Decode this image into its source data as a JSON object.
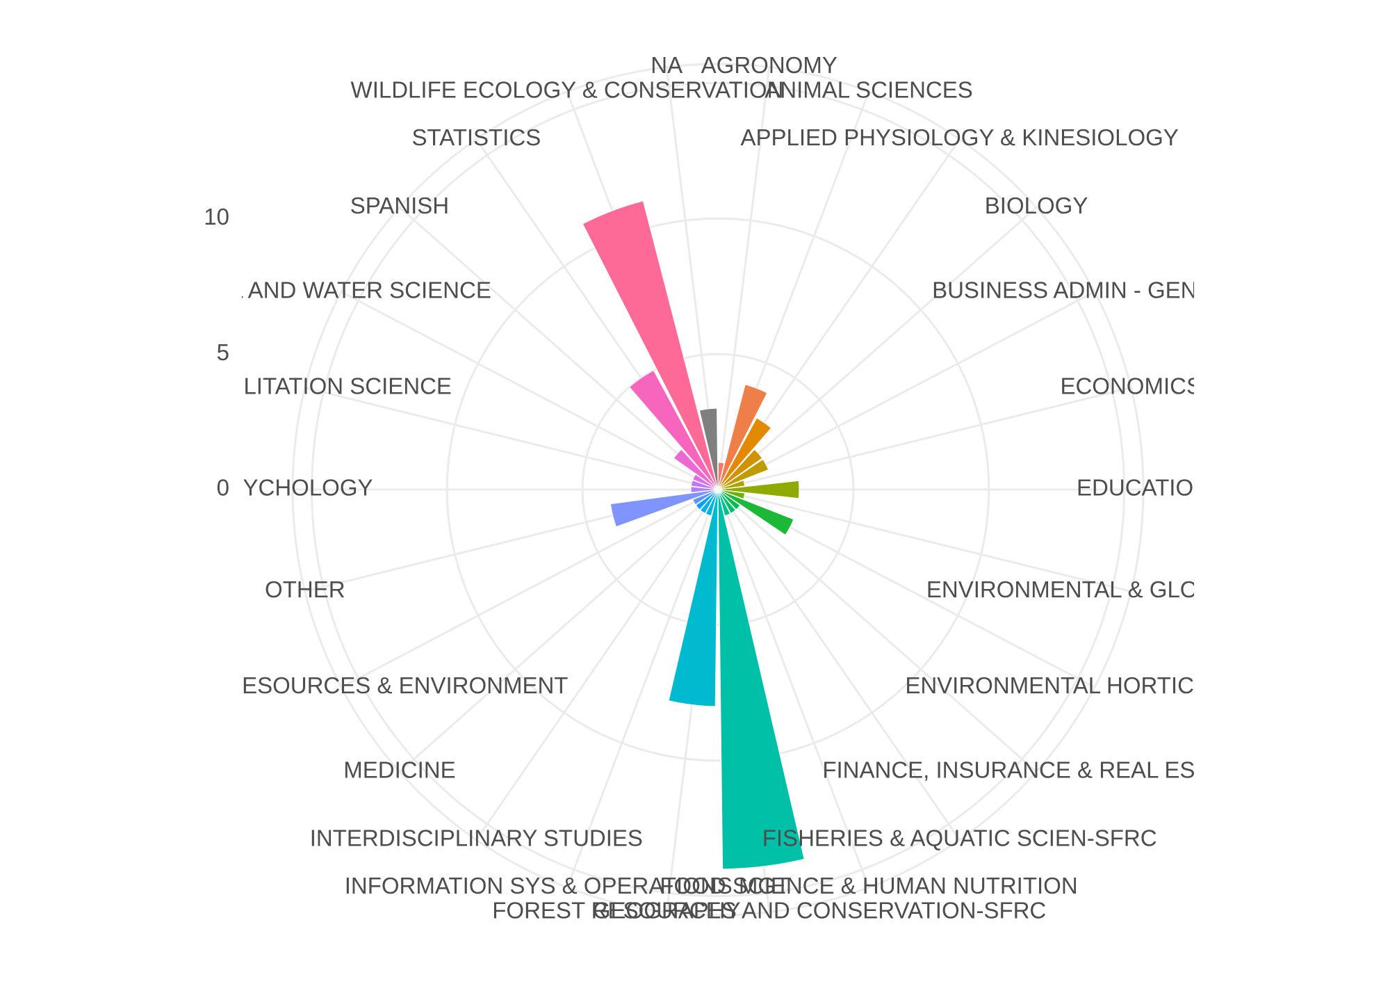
{
  "chart_data": {
    "type": "polar_bar",
    "categories": [
      "AGRONOMY",
      "ANIMAL SCIENCES",
      "APPLIED PHYSIOLOGY & KINESIOLOGY",
      "BIOLOGY",
      "BUSINESS ADMIN - GENERAL",
      "ECONOMICS",
      "EDUCATION",
      "ENVIRONMENTAL & GLOBAL HEALTH",
      "ENVIRONMENTAL HORTICULTURE",
      "FINANCE, INSURANCE & REAL ESTATE",
      "FISHERIES & AQUATIC SCIEN-SFRC",
      "FOOD SCIENCE & HUMAN NUTRITION",
      "FOREST RESOURCES AND CONSERVATION-SFRC",
      "GEOGRAPHY",
      "INFORMATION SYS & OPERATIONS MGT",
      "INTERDISCIPLINARY STUDIES",
      "MEDICINE",
      "NATURAL RESOURCES & ENVIRONMENT",
      "OTHER",
      "PSYCHOLOGY",
      "REHABILITATION SCIENCE",
      "SOIL AND WATER SCIENCE",
      "SPANISH",
      "STATISTICS",
      "WILDLIFE ECOLOGY & CONSERVATION",
      "NA"
    ],
    "values": [
      1,
      4,
      3,
      2,
      2,
      1,
      3,
      1,
      3,
      1,
      1,
      1,
      14,
      8,
      1,
      1,
      1,
      1,
      4,
      1,
      1,
      1,
      2,
      5,
      11,
      3
    ],
    "colors": [
      "#F8766D",
      "#EF7F49",
      "#E38900",
      "#D29200",
      "#C09B00",
      "#A9A400",
      "#8FAA00",
      "#6BB100",
      "#1CB837",
      "#00BB4E",
      "#00BE6C",
      "#00C087",
      "#00C0A8",
      "#00BBCF",
      "#00B4E0",
      "#00ADEF",
      "#00A1FF",
      "#5E95FF",
      "#7F94FF",
      "#AC7FFF",
      "#C674F5",
      "#DD6CE6",
      "#EC68D3",
      "#F765BD",
      "#FD6A98",
      "#7F7F7F"
    ],
    "ylim": [
      0,
      15.7
    ],
    "yticks": [
      0,
      5,
      10
    ],
    "grid": true
  }
}
